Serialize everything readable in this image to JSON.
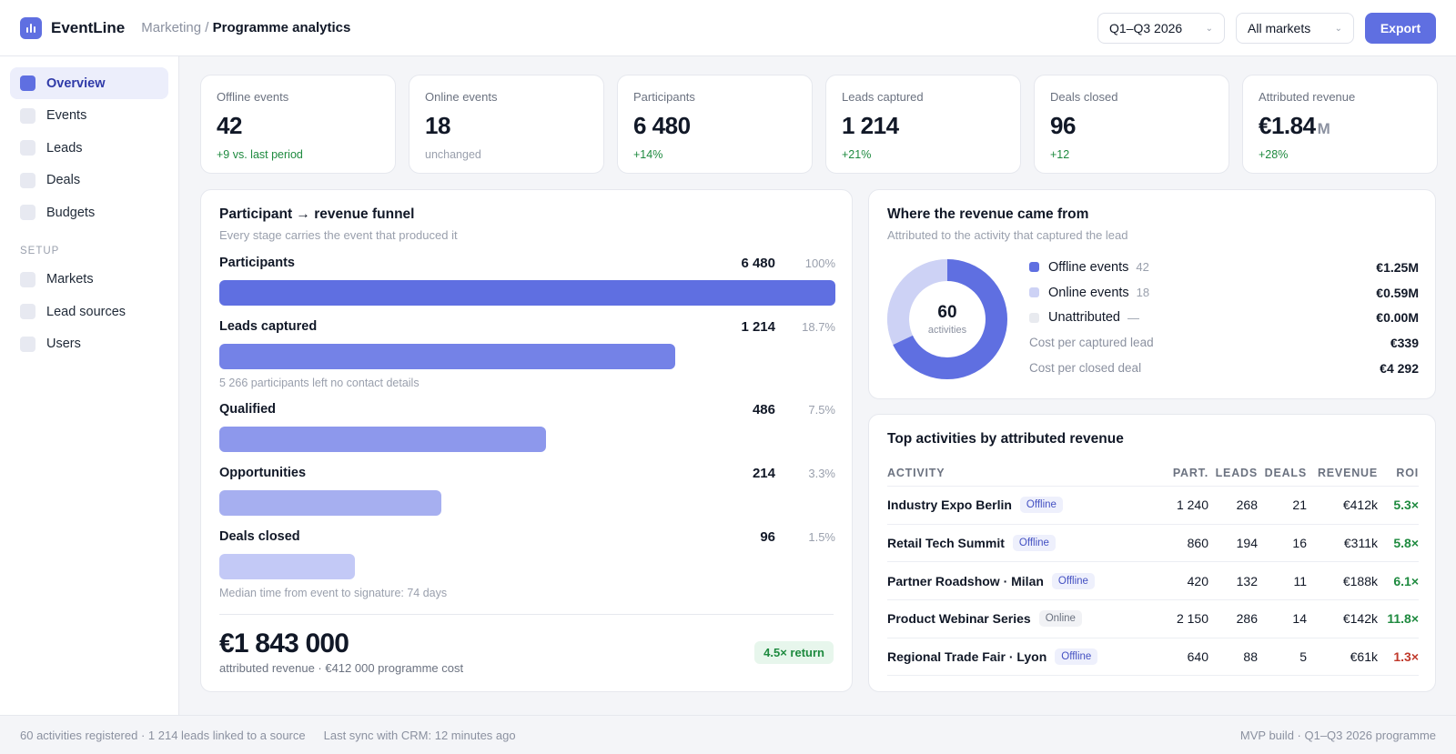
{
  "header": {
    "brand": "EventLine",
    "breadcrumb_parent": "Marketing",
    "breadcrumb_sep": "/",
    "breadcrumb_current": "Programme analytics",
    "period": "Q1–Q3 2026",
    "market": "All markets",
    "export_label": "Export"
  },
  "sidebar": {
    "items": [
      {
        "label": "Overview",
        "active": true
      },
      {
        "label": "Events"
      },
      {
        "label": "Leads"
      },
      {
        "label": "Deals"
      },
      {
        "label": "Budgets"
      }
    ],
    "section_label": "SETUP",
    "setup_items": [
      {
        "label": "Markets"
      },
      {
        "label": "Lead sources"
      },
      {
        "label": "Users"
      }
    ]
  },
  "kpis": [
    {
      "label": "Offline events",
      "value": "42",
      "delta": "+9 vs. last period"
    },
    {
      "label": "Online events",
      "value": "18",
      "delta": "unchanged"
    },
    {
      "label": "Participants",
      "value": "6 480",
      "delta": "+14%"
    },
    {
      "label": "Leads captured",
      "value": "1 214",
      "delta": "+21%"
    },
    {
      "label": "Deals closed",
      "value": "96",
      "delta": "+12"
    },
    {
      "label": "Attributed revenue",
      "value": "€1.84",
      "unit": "M",
      "delta": "+28%"
    }
  ],
  "funnel": {
    "title": "Participant → revenue funnel",
    "subtitle": "Every stage carries the event that produced it",
    "stages": [
      {
        "name": "Participants",
        "count": "6 480",
        "pct": "100%",
        "fill": 1.0,
        "color": "#5f6fe1"
      },
      {
        "name": "Leads captured",
        "count": "1 214",
        "pct": "18.7%",
        "fill": 0.74,
        "color": "#7482e7",
        "note": "5 266 participants left no contact details"
      },
      {
        "name": "Qualified",
        "count": "486",
        "pct": "7.5%",
        "fill": 0.53,
        "color": "#8d98ec"
      },
      {
        "name": "Opportunities",
        "count": "214",
        "pct": "3.3%",
        "fill": 0.36,
        "color": "#a6aff0"
      },
      {
        "name": "Deals closed",
        "count": "96",
        "pct": "1.5%",
        "fill": 0.22,
        "color": "#c3c9f6",
        "note": "Median time from event to signature: 74 days"
      }
    ],
    "total_value": "€1 843 000",
    "total_sub": "attributed revenue · €412 000 programme cost",
    "return_badge": "4.5× return"
  },
  "sources": {
    "title": "Where the revenue came from",
    "subtitle": "Attributed to the activity that captured the lead",
    "donut_value": "60",
    "donut_label": "activities",
    "legend": [
      {
        "label": "Offline events",
        "count": "42",
        "value": "€1.25M",
        "color": "#5f6fe1"
      },
      {
        "label": "Online events",
        "count": "18",
        "value": "€0.59M",
        "color": "#cdd2f5"
      },
      {
        "label": "Unattributed",
        "count": "—",
        "value": "€0.00M",
        "color": "#e8eaef"
      }
    ],
    "metrics": [
      {
        "label": "Cost per captured lead",
        "value": "€339"
      },
      {
        "label": "Cost per closed deal",
        "value": "€4 292"
      }
    ]
  },
  "top_activities": {
    "title": "Top activities by attributed revenue",
    "columns": {
      "activity": "ACTIVITY",
      "part": "PART.",
      "leads": "LEADS",
      "deals": "DEALS",
      "revenue": "REVENUE",
      "roi": "ROI"
    },
    "rows": [
      {
        "name": "Industry Expo Berlin",
        "type": "Offline",
        "part": "1 240",
        "leads": "268",
        "deals": "21",
        "revenue": "€412k",
        "roi": "5.3×",
        "roi_good": true
      },
      {
        "name": "Retail Tech Summit",
        "type": "Offline",
        "part": "860",
        "leads": "194",
        "deals": "16",
        "revenue": "€311k",
        "roi": "5.8×",
        "roi_good": true
      },
      {
        "name": "Partner Roadshow · Milan",
        "type": "Offline",
        "part": "420",
        "leads": "132",
        "deals": "11",
        "revenue": "€188k",
        "roi": "6.1×",
        "roi_good": true
      },
      {
        "name": "Product Webinar Series",
        "type": "Online",
        "part": "2 150",
        "leads": "286",
        "deals": "14",
        "revenue": "€142k",
        "roi": "11.8×",
        "roi_good": true
      },
      {
        "name": "Regional Trade Fair · Lyon",
        "type": "Offline",
        "part": "640",
        "leads": "88",
        "deals": "5",
        "revenue": "€61k",
        "roi": "1.3×",
        "roi_good": false
      }
    ]
  },
  "footer": {
    "left": "60 activities registered · 1 214 leads linked to a source",
    "sync": "Last sync with CRM: 12 minutes ago",
    "right": "MVP build · Q1–Q3 2026 programme"
  },
  "colors": {
    "accent": "#5f6fe1",
    "positive": "#1e8a3f",
    "negative": "#c0392b"
  }
}
